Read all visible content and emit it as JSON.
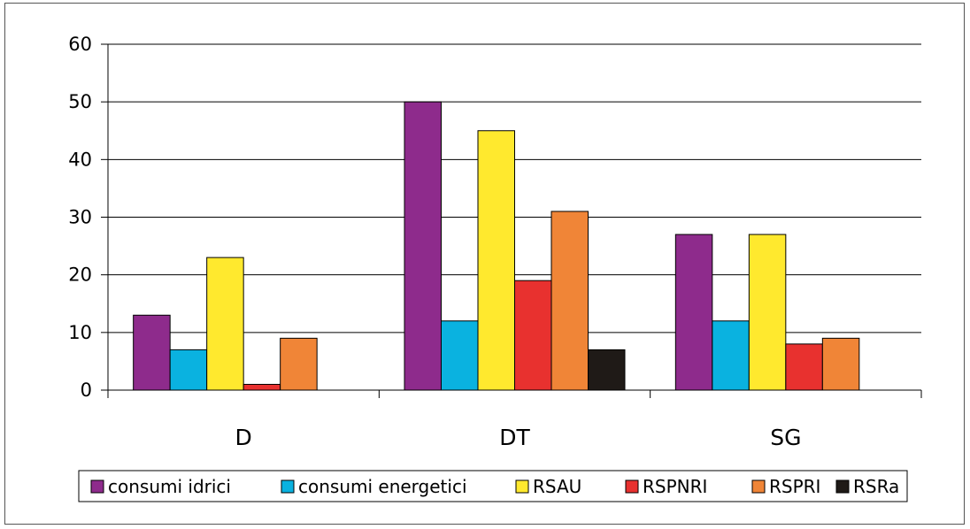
{
  "chart_data": {
    "type": "bar",
    "categories": [
      "D",
      "DT",
      "SG"
    ],
    "series": [
      {
        "name": "consumi idrici",
        "color": "#8e2b8c",
        "values": [
          13,
          50,
          27
        ]
      },
      {
        "name": "consumi energetici",
        "color": "#0ab2e0",
        "values": [
          7,
          12,
          12
        ]
      },
      {
        "name": "RSAU",
        "color": "#ffe92e",
        "values": [
          23,
          45,
          27
        ]
      },
      {
        "name": "RSPNRI",
        "color": "#e8312f",
        "values": [
          1,
          19,
          8
        ]
      },
      {
        "name": "RSPRI",
        "color": "#f08537",
        "values": [
          9,
          31,
          9
        ]
      },
      {
        "name": "RSRa",
        "color": "#1f1a17",
        "values": [
          0,
          7,
          0
        ]
      }
    ],
    "yticks": [
      "0",
      "10",
      "20",
      "30",
      "40",
      "50",
      "60"
    ],
    "ylim": [
      0,
      60
    ],
    "grid": true,
    "legend_position": "bottom"
  }
}
